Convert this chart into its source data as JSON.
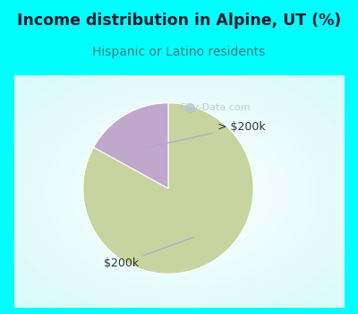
{
  "title": "Income distribution in Alpine, UT (%)",
  "subtitle": "Hispanic or Latino residents",
  "title_color": "#1a1a2e",
  "subtitle_color": "#3a7a7a",
  "bg_color": "#00FFFF",
  "chart_bg_color": "#e8f8f0",
  "slices": [
    {
      "label": "$200k",
      "value": 83,
      "color": "#c8d4a0"
    },
    {
      "label": "> $200k",
      "value": 17,
      "color": "#c0a8cc"
    }
  ],
  "start_angle": 90,
  "figsize": [
    4.0,
    3.5
  ],
  "dpi": 100,
  "annotation_color": "#333333",
  "annotation_line_color": "#aaaacc",
  "watermark_color": "#b0c8d0",
  "watermark_text": "City-Data.com"
}
